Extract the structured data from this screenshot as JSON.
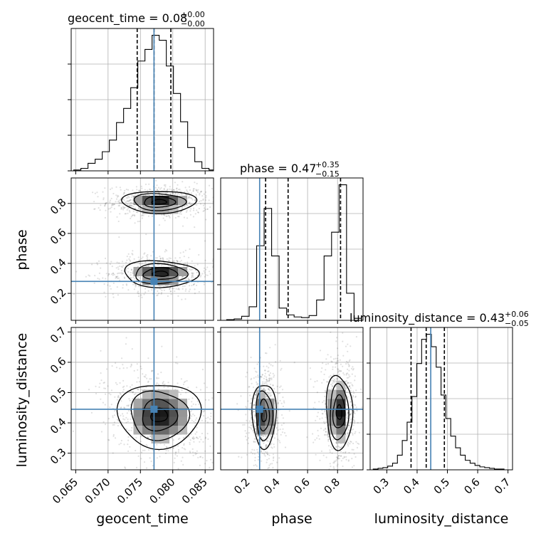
{
  "chart_data": {
    "type": "corner",
    "parameters": [
      "geocent_time",
      "phase",
      "luminosity_distance"
    ],
    "truth": [
      0.0771,
      0.28,
      0.445
    ],
    "ranges": [
      [
        0.0643,
        0.0863
      ],
      [
        0.02,
        0.97
      ],
      [
        0.245,
        0.715
      ]
    ],
    "xticks": [
      [
        0.065,
        0.07,
        0.075,
        0.08,
        0.085
      ],
      [
        0.2,
        0.4,
        0.6,
        0.8
      ],
      [
        0.3,
        0.4,
        0.5,
        0.6,
        0.7
      ]
    ],
    "xtick_labels": [
      [
        "0.065",
        "0.070",
        "0.075",
        "0.080",
        "0.085"
      ],
      [
        "0.2",
        "0.4",
        "0.6",
        "0.8"
      ],
      [
        "0.3",
        "0.4",
        "0.5",
        "0.6",
        "0.7"
      ]
    ],
    "yticks": {
      "phase": [
        0.2,
        0.4,
        0.6,
        0.8
      ],
      "luminosity_distance": [
        0.3,
        0.4,
        0.5,
        0.6,
        0.7
      ]
    },
    "ytick_labels": {
      "phase": [
        "0.2",
        "0.4",
        "0.6",
        "0.8"
      ],
      "luminosity_distance": [
        "0.3",
        "0.4",
        "0.5",
        "0.6",
        "0.7"
      ]
    },
    "titles": [
      {
        "text": "geocent_time = 0.08",
        "sup": "+0.00",
        "sub": "−0.00"
      },
      {
        "text": "phase = 0.47",
        "sup": "+0.35",
        "sub": "−0.15"
      },
      {
        "text": "luminosity_distance = 0.43",
        "sup": "+0.06",
        "sub": "−0.05"
      }
    ],
    "axis_labels": {
      "x": [
        "geocent_time",
        "phase",
        "luminosity_distance"
      ],
      "y": [
        "phase",
        "luminosity_distance"
      ]
    },
    "quantiles": [
      [
        0.0745,
        0.0771,
        0.0797
      ],
      [
        0.32,
        0.47,
        0.82
      ],
      [
        0.38,
        0.43,
        0.49
      ]
    ],
    "histograms": [
      {
        "parameter": "geocent_time",
        "bins": [
          0.0647,
          0.0658,
          0.0669,
          0.068,
          0.0691,
          0.0702,
          0.0713,
          0.0724,
          0.0735,
          0.0746,
          0.0757,
          0.0768,
          0.0779,
          0.079,
          0.0801,
          0.0812,
          0.0823,
          0.0834,
          0.0845,
          0.0856
        ],
        "counts": [
          1,
          3,
          9,
          14,
          23,
          37,
          58,
          75,
          100,
          132,
          146,
          163,
          157,
          126,
          93,
          59,
          28,
          11,
          3,
          1
        ]
      },
      {
        "parameter": "phase",
        "bins": [
          0.06,
          0.11,
          0.16,
          0.21,
          0.26,
          0.31,
          0.36,
          0.41,
          0.46,
          0.51,
          0.56,
          0.61,
          0.66,
          0.71,
          0.76,
          0.81,
          0.86,
          0.91
        ],
        "counts": [
          1,
          2,
          6,
          20,
          110,
          165,
          95,
          18,
          8,
          5,
          4,
          7,
          30,
          95,
          130,
          200,
          40,
          3
        ]
      },
      {
        "parameter": "luminosity_distance",
        "bins": [
          0.255,
          0.271,
          0.287,
          0.303,
          0.319,
          0.335,
          0.351,
          0.367,
          0.383,
          0.399,
          0.415,
          0.431,
          0.447,
          0.463,
          0.479,
          0.495,
          0.511,
          0.527,
          0.543,
          0.559,
          0.575,
          0.591,
          0.607,
          0.623,
          0.639,
          0.655,
          0.671,
          0.687
        ],
        "counts": [
          1,
          2,
          3,
          5,
          9,
          20,
          40,
          65,
          100,
          145,
          178,
          185,
          168,
          140,
          102,
          70,
          46,
          30,
          20,
          13,
          9,
          6,
          4,
          3,
          2,
          1,
          1,
          0
        ]
      }
    ],
    "density_modes": [
      {
        "x": "geocent_time",
        "y": "phase",
        "centers": [
          [
            0.0779,
            0.81
          ],
          [
            0.0781,
            0.33
          ]
        ],
        "spread": [
          [
            0.0025,
            0.035
          ],
          [
            0.0026,
            0.04
          ]
        ]
      },
      {
        "x": "geocent_time",
        "y": "luminosity_distance",
        "centers": [
          [
            0.0779,
            0.425
          ]
        ],
        "spread": [
          [
            0.0028,
            0.05
          ]
        ]
      },
      {
        "x": "phase",
        "y": "luminosity_distance",
        "centers": [
          [
            0.31,
            0.425
          ],
          [
            0.81,
            0.435
          ]
        ],
        "spread": [
          [
            0.035,
            0.05
          ],
          [
            0.04,
            0.055
          ]
        ]
      }
    ],
    "truth_color": "#4682b4",
    "grid": true
  }
}
